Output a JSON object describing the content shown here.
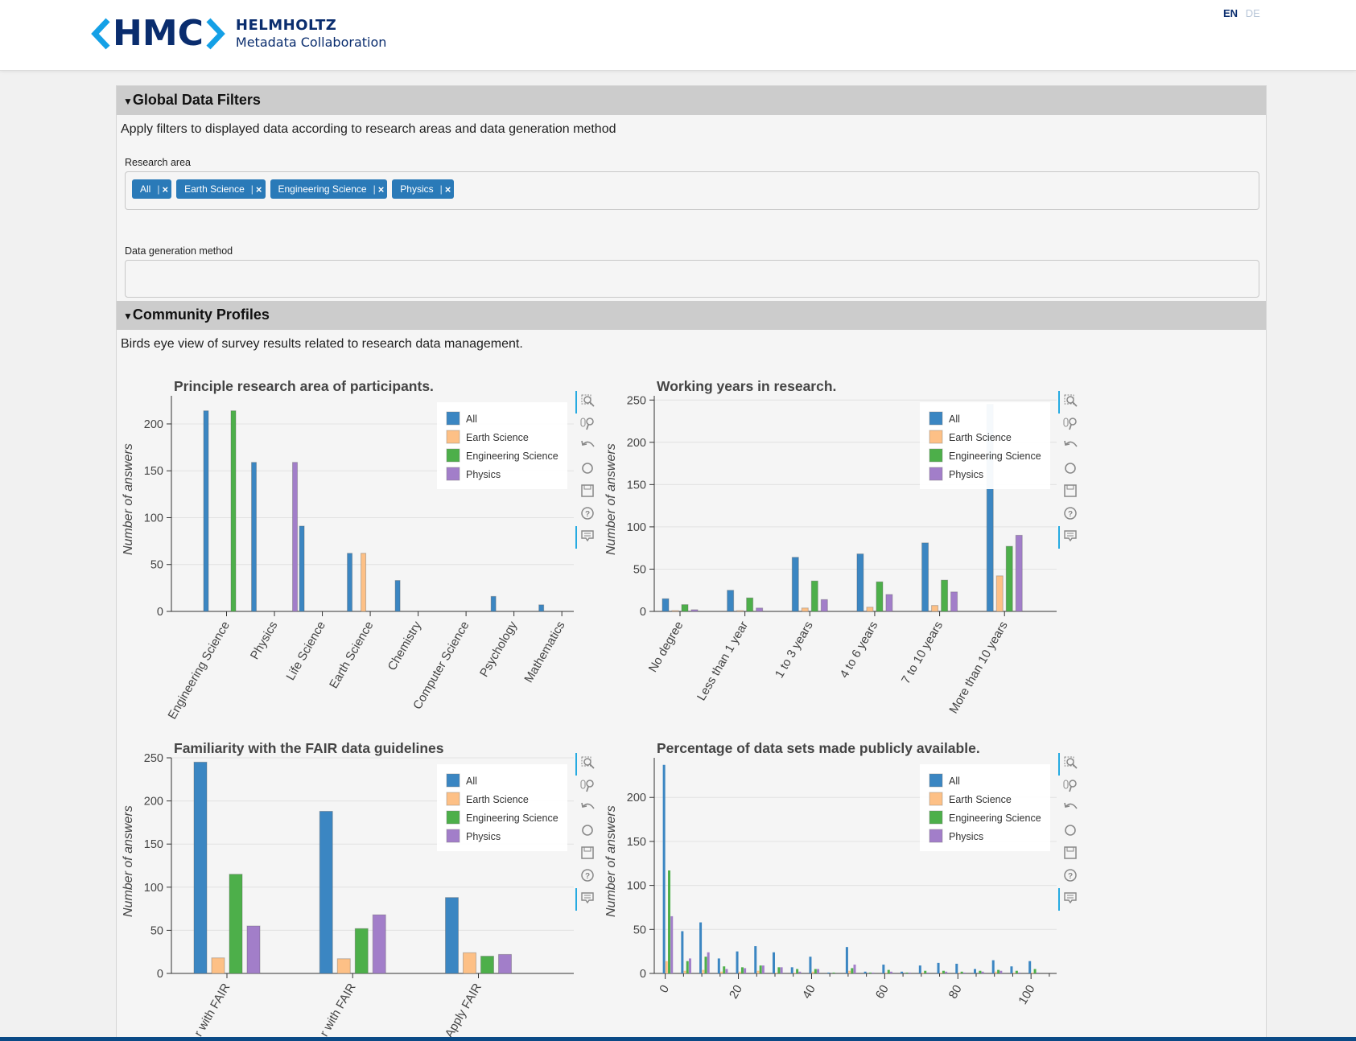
{
  "header": {
    "logo_text": "HMC",
    "org_line1": "HELMHOLTZ",
    "org_line2": "Metadata Collaboration",
    "lang_en": "EN",
    "lang_de": "DE"
  },
  "filters": {
    "heading": "Global Data Filters",
    "description": "Apply filters to displayed data according to research areas and data generation method",
    "research_area_label": "Research area",
    "research_area_tags": [
      "All",
      "Earth Science",
      "Engineering Science",
      "Physics"
    ],
    "method_label": "Data generation method",
    "method_value": ""
  },
  "profiles": {
    "heading": "Community Profiles",
    "description": "Birds eye view of survey results related to research data management."
  },
  "colors": {
    "All": "#3b86c2",
    "Earth Science": "#fdc086",
    "Engineering Science": "#4daf4a",
    "Physics": "#a27ec9"
  },
  "chart_data": [
    {
      "type": "bar",
      "title": "Principle research area of participants.",
      "ylabel": "Number of answers",
      "ylim": [
        0,
        230
      ],
      "yticks": [
        0,
        50,
        100,
        150,
        200
      ],
      "categories": [
        "Engineering Science",
        "Physics",
        "Life Science",
        "Earth Science",
        "Chemistry",
        "Computer Science",
        "Psychology",
        "Mathematics"
      ],
      "series": [
        {
          "name": "All",
          "values": [
            214,
            159,
            91,
            62,
            33,
            0,
            16,
            7
          ]
        },
        {
          "name": "Earth Science",
          "values": [
            0,
            0,
            0,
            62,
            0,
            0,
            0,
            0
          ]
        },
        {
          "name": "Engineering Science",
          "values": [
            214,
            0,
            0,
            0,
            0,
            0,
            0,
            0
          ]
        },
        {
          "name": "Physics",
          "values": [
            0,
            159,
            0,
            0,
            0,
            0,
            0,
            0
          ]
        }
      ],
      "legend": "top-right"
    },
    {
      "type": "bar",
      "title": "Working years in research.",
      "ylabel": "Number of answers",
      "ylim": [
        0,
        255
      ],
      "yticks": [
        0,
        50,
        100,
        150,
        200,
        250
      ],
      "categories": [
        "No degree",
        "Less than 1 year",
        "1 to 3 years",
        "4 to 6 years",
        "7 to 10 years",
        "More than 10 years"
      ],
      "series": [
        {
          "name": "All",
          "values": [
            15,
            25,
            64,
            68,
            81,
            245
          ]
        },
        {
          "name": "Earth Science",
          "values": [
            1,
            1,
            4,
            5,
            7,
            42
          ]
        },
        {
          "name": "Engineering Science",
          "values": [
            8,
            16,
            36,
            35,
            37,
            77
          ]
        },
        {
          "name": "Physics",
          "values": [
            2,
            4,
            14,
            20,
            23,
            90
          ]
        }
      ],
      "legend": "top-right"
    },
    {
      "type": "bar",
      "title": "Familiarity with the FAIR data guidelines",
      "ylabel": "Number of answers",
      "ylim": [
        0,
        250
      ],
      "yticks": [
        0,
        50,
        100,
        150,
        200,
        250
      ],
      "categories": [
        "Familiar with FAIR",
        "Not familiar with FAIR",
        "Apply FAIR"
      ],
      "category_labels_visible": [
        "r with FAIR",
        "r with FAIR",
        "Apply FAIR"
      ],
      "series": [
        {
          "name": "All",
          "values": [
            245,
            188,
            88
          ]
        },
        {
          "name": "Earth Science",
          "values": [
            18,
            17,
            24
          ]
        },
        {
          "name": "Engineering Science",
          "values": [
            115,
            52,
            20
          ]
        },
        {
          "name": "Physics",
          "values": [
            55,
            68,
            22
          ]
        }
      ],
      "legend": "top-right"
    },
    {
      "type": "bar",
      "title": "Percentage of data sets made publicly available.",
      "ylabel": "Number of answers",
      "ylim": [
        0,
        245
      ],
      "yticks": [
        0,
        50,
        100,
        150,
        200
      ],
      "xlim": [
        -3,
        107
      ],
      "xticks": [
        0,
        20,
        40,
        60,
        80,
        100
      ],
      "x": [
        0,
        5,
        10,
        15,
        20,
        25,
        30,
        35,
        40,
        45,
        50,
        55,
        60,
        65,
        70,
        75,
        80,
        85,
        90,
        95,
        100
      ],
      "series": [
        {
          "name": "All",
          "values": [
            237,
            48,
            58,
            17,
            25,
            31,
            24,
            7,
            19,
            1,
            30,
            2,
            10,
            2,
            9,
            12,
            11,
            5,
            15,
            8,
            14
          ]
        },
        {
          "name": "Earth Science",
          "values": [
            14,
            3,
            4,
            2,
            2,
            3,
            1,
            1,
            2,
            0,
            3,
            0,
            1,
            0,
            1,
            1,
            1,
            0,
            2,
            1,
            1
          ]
        },
        {
          "name": "Engineering Science",
          "values": [
            117,
            14,
            19,
            8,
            7,
            9,
            7,
            5,
            5,
            1,
            6,
            1,
            4,
            1,
            3,
            3,
            2,
            3,
            4,
            3,
            5
          ]
        },
        {
          "name": "Physics",
          "values": [
            65,
            17,
            24,
            5,
            6,
            9,
            7,
            2,
            5,
            0,
            10,
            1,
            2,
            1,
            1,
            2,
            1,
            2,
            3,
            1,
            1
          ]
        }
      ],
      "legend": "top-right"
    }
  ]
}
